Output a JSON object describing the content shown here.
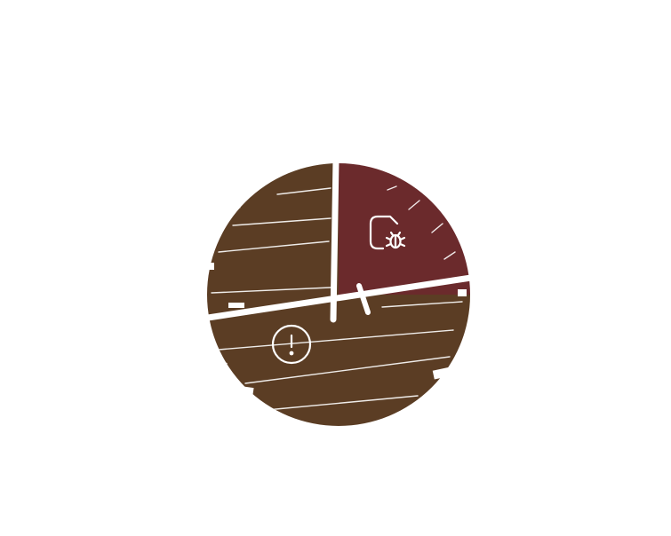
{
  "chart_data": {
    "type": "pie",
    "style": "hand-drawn hachure fill",
    "title": "",
    "slices": [
      {
        "value": 25,
        "color": "#6b2a2c",
        "icon": "file-bug-icon"
      },
      {
        "value": 75,
        "color": "#5b3d24",
        "icon": "alert-circle-icon"
      }
    ],
    "legend": "none"
  },
  "colors": {
    "background": "#ffffff",
    "separator": "#ffffff",
    "icon_stroke": "#ffffff"
  }
}
